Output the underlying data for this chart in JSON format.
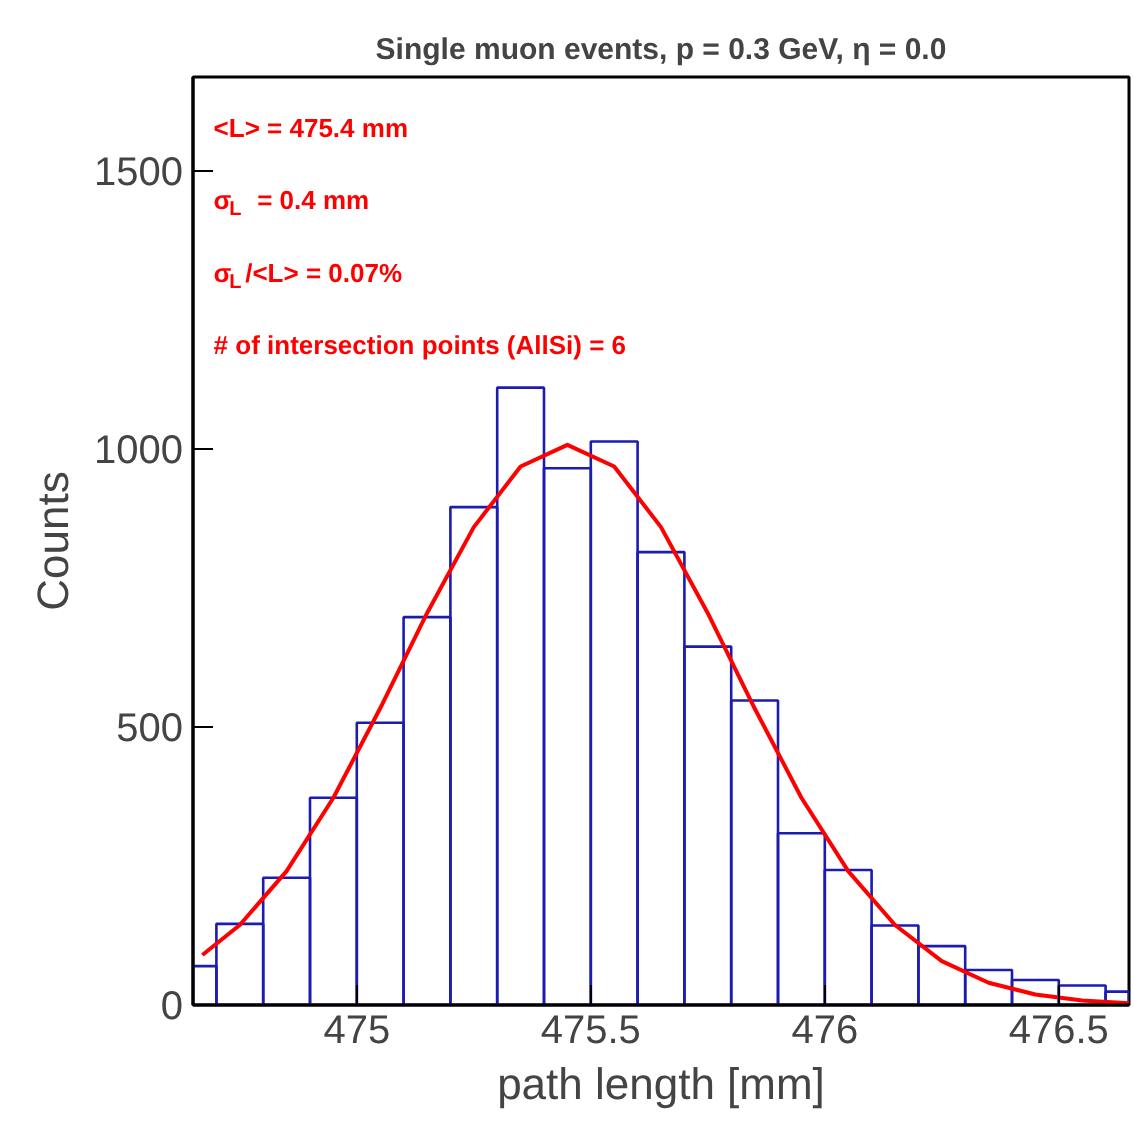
{
  "chart_data": {
    "type": "histogram",
    "title": "Single muon events, p = 0.3 GeV, η = 0.0",
    "xlabel": "path length [mm]",
    "ylabel": "Counts",
    "bins": [
      474.65,
      474.7,
      474.8,
      474.9,
      475.0,
      475.1,
      475.2,
      475.3,
      475.4,
      475.5,
      475.6,
      475.7,
      475.8,
      475.9,
      476.0,
      476.1,
      476.2,
      476.3,
      476.4,
      476.5,
      476.6,
      476.65
    ],
    "series": [
      {
        "color": "#1c1cb0",
        "values": [
          70,
          146,
          229,
          373,
          508,
          698,
          896,
          1111,
          966,
          1014,
          815,
          645,
          548,
          309,
          243,
          143,
          106,
          63,
          45,
          35,
          24
        ]
      },
      {
        "type": "line",
        "color": "#ff0000",
        "x": [
          474.67,
          474.75,
          474.85,
          474.95,
          475.05,
          475.15,
          475.25,
          475.35,
          475.45,
          475.55,
          475.65,
          475.75,
          475.85,
          475.95,
          476.05,
          476.15,
          476.25,
          476.35,
          476.45,
          476.55,
          476.65
        ],
        "values": [
          90,
          144,
          241,
          373,
          534,
          705,
          860,
          969,
          1008,
          969,
          860,
          705,
          534,
          373,
          241,
          144,
          79,
          40,
          19,
          8,
          3
        ]
      }
    ],
    "annotations": [
      "<L> = 475.4 mm",
      "σ$_{L}$ = 0.4 mm",
      "σ$_{L}$/<L> = 0.07%",
      "# of intersection points (AllSi) = 6"
    ],
    "xlim": [
      474.65,
      476.65
    ],
    "ylim": [
      0,
      1670
    ],
    "xticks": [
      475,
      475.5,
      476,
      476.5
    ],
    "yticks": [
      0,
      500,
      1000,
      1500
    ],
    "grid": false
  }
}
